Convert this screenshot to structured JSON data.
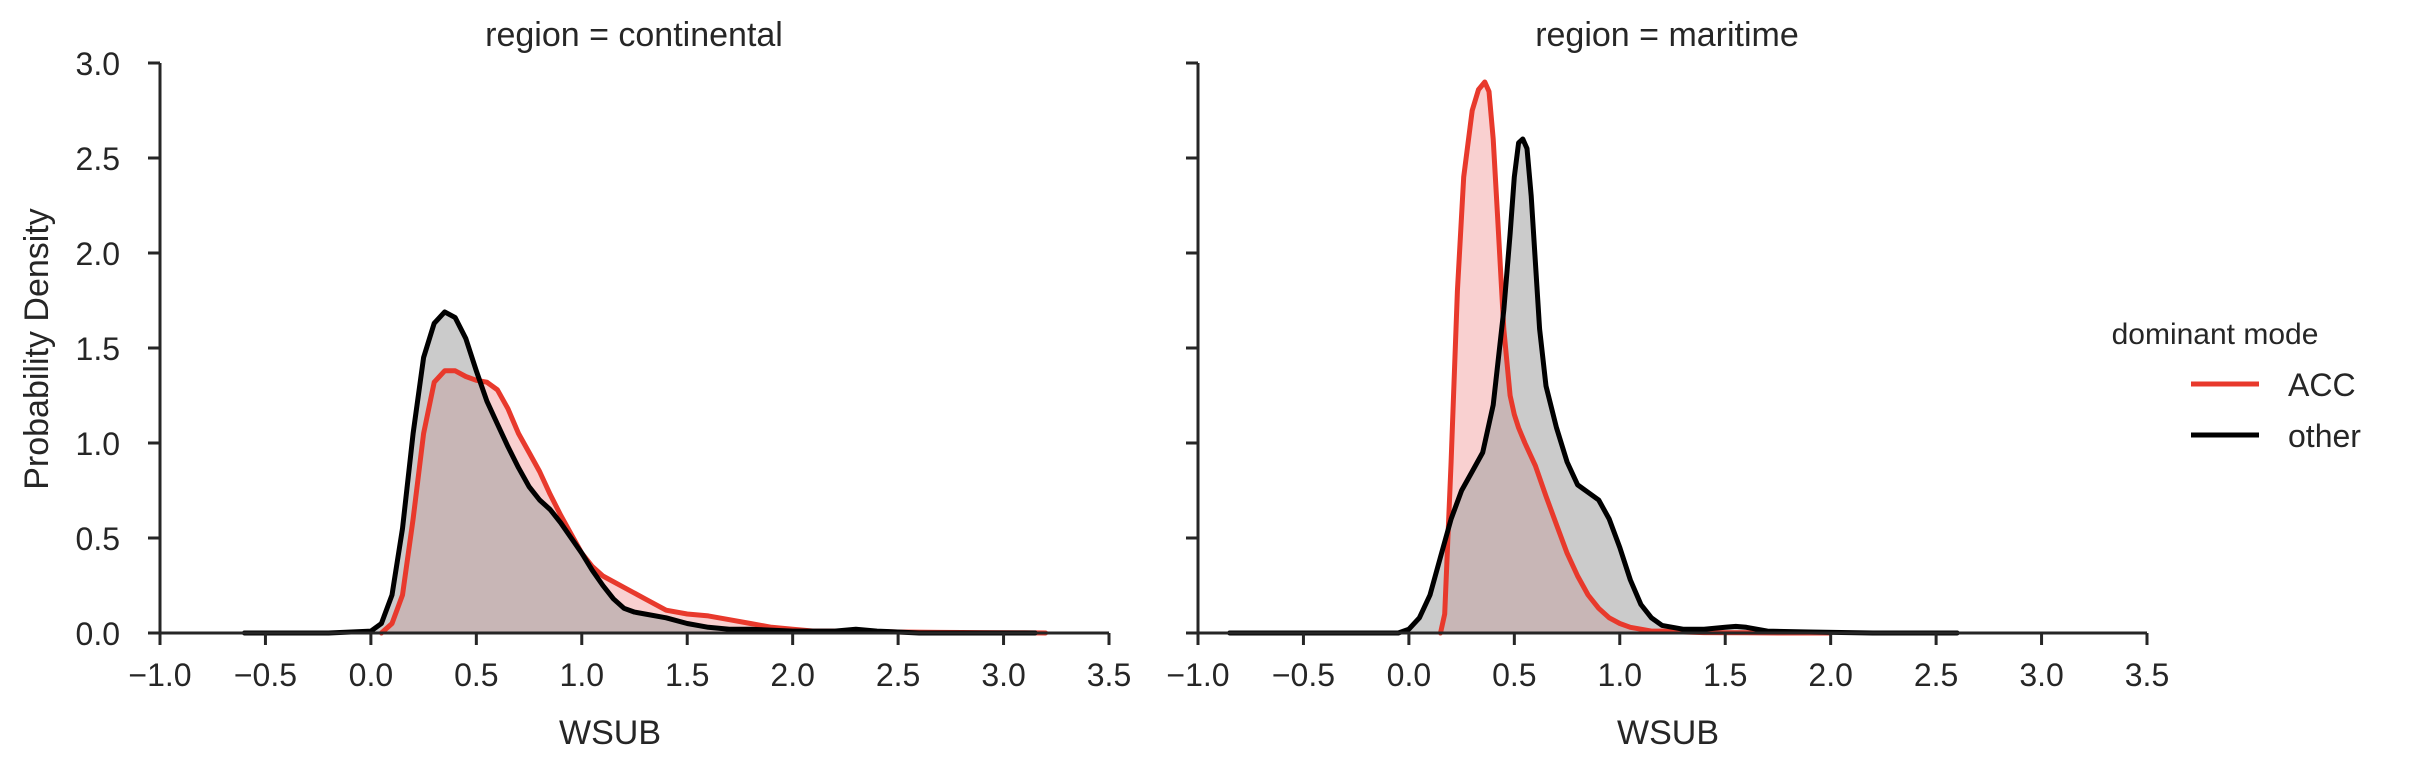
{
  "chart_data": {
    "type": "area",
    "ylabel": "Probability Density",
    "legend": {
      "title": "dominant mode",
      "placement": "center-right",
      "entries": [
        {
          "label": "ACC",
          "color": "#e8392c"
        },
        {
          "label": "other",
          "color": "#000000"
        }
      ]
    },
    "fill_colors": {
      "ACC": "#f4aaaa",
      "other": "#a0a0a0"
    },
    "grid": false,
    "panels": [
      {
        "title": "region = continental",
        "xlabel": "WSUB",
        "xlim": [
          -1.0,
          3.5
        ],
        "ylim": [
          0.0,
          3.0
        ],
        "xticks": [
          "−1.0",
          "−0.5",
          "0.0",
          "0.5",
          "1.0",
          "1.5",
          "2.0",
          "2.5",
          "3.0",
          "3.5"
        ],
        "yticks": [
          "0.0",
          "0.5",
          "1.0",
          "1.5",
          "2.0",
          "2.5",
          "3.0"
        ],
        "series": [
          {
            "name": "ACC",
            "x": [
              0.05,
              0.1,
              0.15,
              0.2,
              0.25,
              0.3,
              0.35,
              0.4,
              0.45,
              0.5,
              0.55,
              0.6,
              0.65,
              0.7,
              0.75,
              0.8,
              0.85,
              0.9,
              0.95,
              1.0,
              1.05,
              1.1,
              1.2,
              1.3,
              1.4,
              1.5,
              1.6,
              1.7,
              1.8,
              1.9,
              2.0,
              2.1,
              2.3,
              2.5,
              2.7,
              2.9,
              3.1,
              3.2
            ],
            "y": [
              0.0,
              0.05,
              0.2,
              0.6,
              1.05,
              1.32,
              1.38,
              1.38,
              1.35,
              1.33,
              1.32,
              1.28,
              1.18,
              1.05,
              0.95,
              0.85,
              0.73,
              0.62,
              0.52,
              0.42,
              0.35,
              0.3,
              0.24,
              0.18,
              0.12,
              0.1,
              0.09,
              0.07,
              0.05,
              0.03,
              0.02,
              0.01,
              0.01,
              0.005,
              0.003,
              0.002,
              0.001,
              0.0
            ]
          },
          {
            "name": "other",
            "x": [
              -0.6,
              -0.4,
              -0.2,
              0.0,
              0.05,
              0.1,
              0.15,
              0.2,
              0.25,
              0.3,
              0.35,
              0.4,
              0.45,
              0.5,
              0.55,
              0.6,
              0.65,
              0.7,
              0.75,
              0.8,
              0.85,
              0.9,
              0.95,
              1.0,
              1.05,
              1.1,
              1.15,
              1.2,
              1.25,
              1.3,
              1.4,
              1.5,
              1.6,
              1.7,
              1.8,
              2.0,
              2.2,
              2.3,
              2.4,
              2.6,
              2.8,
              3.0,
              3.15
            ],
            "y": [
              0.0,
              0.0,
              0.0,
              0.01,
              0.05,
              0.2,
              0.55,
              1.05,
              1.45,
              1.63,
              1.69,
              1.66,
              1.55,
              1.38,
              1.22,
              1.1,
              0.98,
              0.87,
              0.77,
              0.7,
              0.65,
              0.58,
              0.5,
              0.42,
              0.33,
              0.25,
              0.18,
              0.13,
              0.11,
              0.1,
              0.08,
              0.05,
              0.03,
              0.02,
              0.02,
              0.01,
              0.01,
              0.02,
              0.01,
              0.0,
              0.0,
              0.0,
              0.0
            ]
          }
        ]
      },
      {
        "title": "region = maritime",
        "xlabel": "WSUB",
        "xlim": [
          -1.0,
          3.5
        ],
        "ylim": [
          0.0,
          3.0
        ],
        "xticks": [
          "−1.0",
          "−0.5",
          "0.0",
          "0.5",
          "1.0",
          "1.5",
          "2.0",
          "2.5",
          "3.0",
          "3.5"
        ],
        "yticks": [
          "0.0",
          "0.5",
          "1.0",
          "1.5",
          "2.0",
          "2.5",
          "3.0"
        ],
        "series": [
          {
            "name": "ACC",
            "x": [
              0.15,
              0.17,
              0.2,
              0.23,
              0.26,
              0.3,
              0.33,
              0.36,
              0.38,
              0.4,
              0.42,
              0.45,
              0.48,
              0.5,
              0.52,
              0.55,
              0.6,
              0.65,
              0.7,
              0.75,
              0.8,
              0.85,
              0.9,
              0.95,
              1.0,
              1.05,
              1.1,
              1.15,
              1.2,
              1.3,
              1.4,
              1.6,
              1.8,
              2.0
            ],
            "y": [
              0.0,
              0.1,
              0.9,
              1.8,
              2.4,
              2.75,
              2.86,
              2.9,
              2.85,
              2.6,
              2.2,
              1.6,
              1.25,
              1.15,
              1.08,
              1.0,
              0.88,
              0.72,
              0.57,
              0.42,
              0.3,
              0.2,
              0.13,
              0.08,
              0.05,
              0.03,
              0.02,
              0.01,
              0.01,
              0.005,
              0.002,
              0.001,
              0.0,
              0.0
            ]
          },
          {
            "name": "other",
            "x": [
              -0.85,
              -0.5,
              -0.2,
              -0.05,
              0.0,
              0.05,
              0.1,
              0.15,
              0.2,
              0.25,
              0.3,
              0.35,
              0.4,
              0.45,
              0.48,
              0.5,
              0.52,
              0.54,
              0.56,
              0.58,
              0.6,
              0.62,
              0.65,
              0.7,
              0.75,
              0.8,
              0.85,
              0.9,
              0.95,
              1.0,
              1.05,
              1.1,
              1.15,
              1.2,
              1.3,
              1.4,
              1.5,
              1.55,
              1.6,
              1.7,
              1.9,
              2.2,
              2.6
            ],
            "y": [
              0.0,
              0.0,
              0.0,
              0.0,
              0.02,
              0.08,
              0.2,
              0.4,
              0.6,
              0.75,
              0.85,
              0.95,
              1.2,
              1.7,
              2.1,
              2.4,
              2.58,
              2.6,
              2.55,
              2.3,
              1.95,
              1.6,
              1.3,
              1.08,
              0.9,
              0.78,
              0.74,
              0.7,
              0.6,
              0.45,
              0.28,
              0.15,
              0.08,
              0.04,
              0.02,
              0.02,
              0.03,
              0.035,
              0.03,
              0.01,
              0.005,
              0.0,
              0.0
            ]
          }
        ]
      }
    ]
  }
}
